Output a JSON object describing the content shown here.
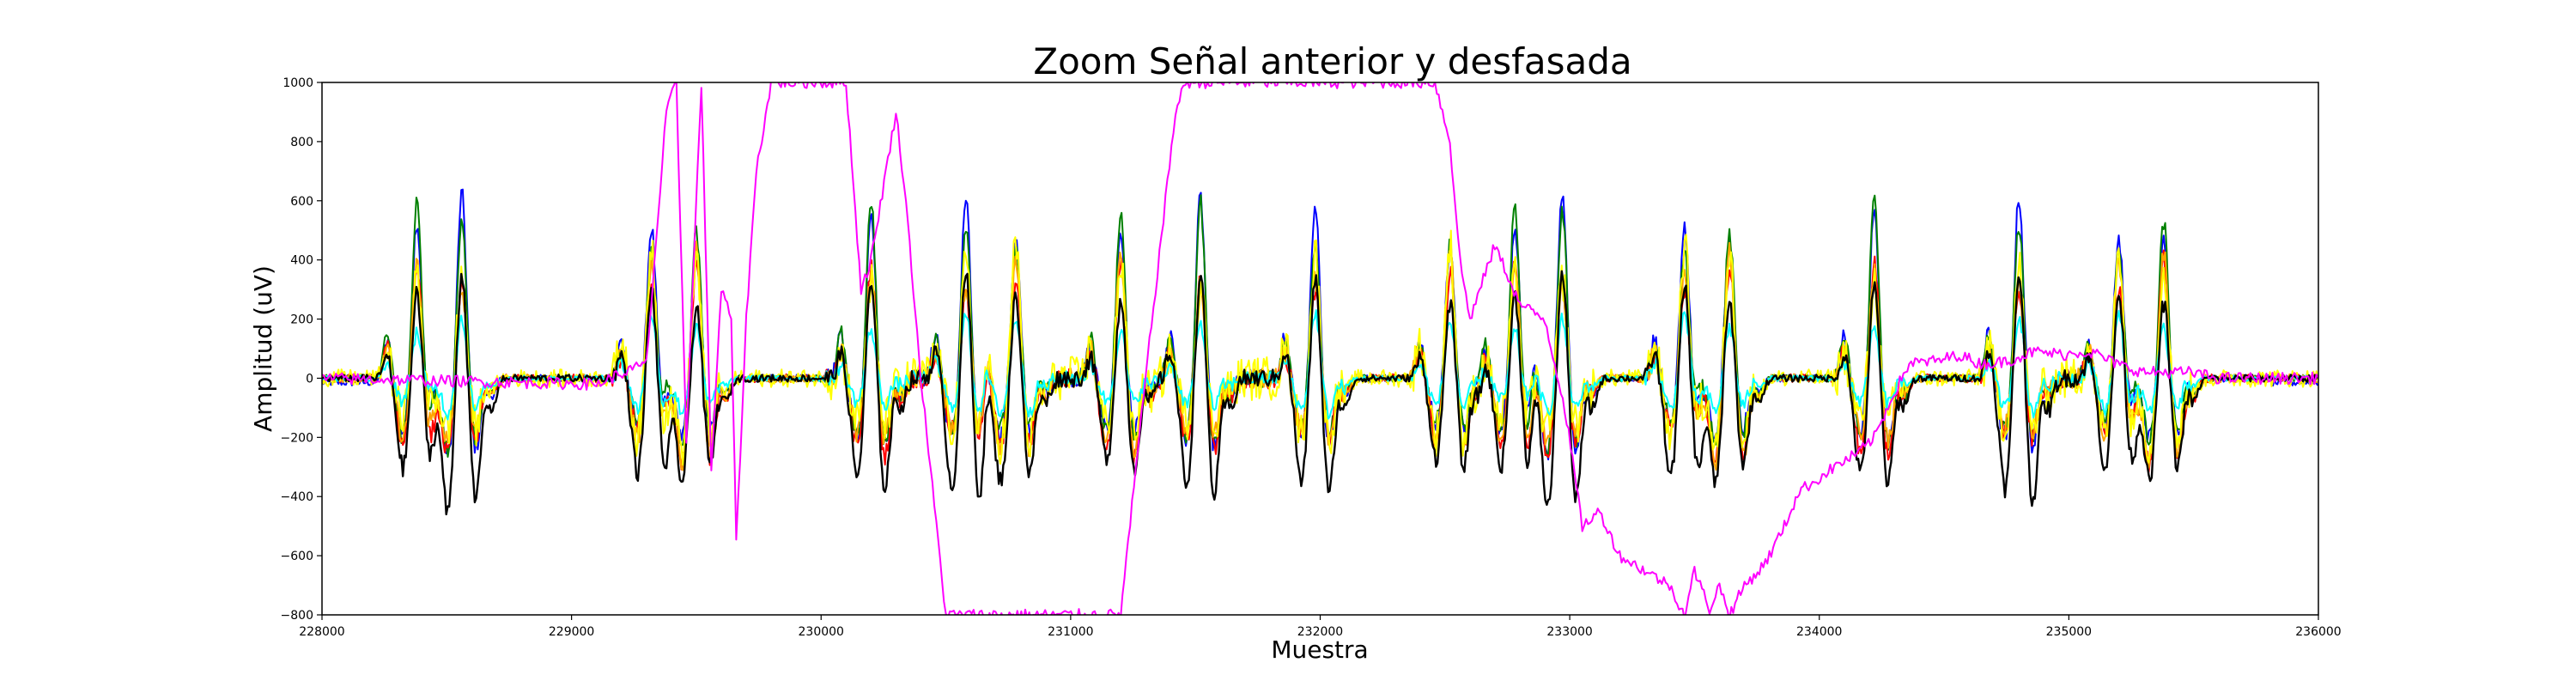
{
  "chart_data": {
    "type": "line",
    "title": "Zoom Señal anterior y desfasada",
    "xlabel": "Muestra",
    "ylabel": "Amplitud (uV)",
    "xlim": [
      228000,
      236000
    ],
    "ylim": [
      -800,
      1000
    ],
    "xticks": [
      228000,
      229000,
      230000,
      231000,
      232000,
      233000,
      234000,
      235000,
      236000
    ],
    "yticks": [
      -800,
      -600,
      -400,
      -200,
      0,
      200,
      400,
      600,
      800,
      1000
    ],
    "grid": false,
    "spike_times": [
      228380,
      228560,
      229320,
      229500,
      230200,
      230580,
      230780,
      231200,
      231520,
      231980,
      232520,
      232780,
      232970,
      233460,
      233640,
      234220,
      234800,
      235200,
      235380
    ],
    "segments": [
      [
        228000,
        228260
      ],
      [
        228640,
        229160
      ],
      [
        229600,
        230020
      ],
      [
        232100,
        232360
      ],
      [
        233100,
        233300
      ],
      [
        233740,
        234060
      ],
      [
        234350,
        234640
      ],
      [
        235500,
        236000
      ]
    ],
    "series": [
      {
        "color": "#0000ff",
        "peak": 640,
        "trough": -240,
        "noise": 12
      },
      {
        "color": "#008000",
        "peak": 620,
        "trough": -230,
        "noise": 12
      },
      {
        "color": "#ff0000",
        "peak": 420,
        "trough": -280,
        "noise": 14
      },
      {
        "color": "#ffa500",
        "peak": 450,
        "trough": -260,
        "noise": 14
      },
      {
        "color": "#ffff00",
        "peak": 470,
        "trough": -220,
        "noise": 30
      },
      {
        "color": "#00ffff",
        "peak": 230,
        "trough": -120,
        "noise": 10
      },
      {
        "color": "#000000",
        "peak": 380,
        "trough": -420,
        "noise": 12
      }
    ],
    "outlier_series": {
      "color": "#ff00ff",
      "points": [
        [
          228000,
          0
        ],
        [
          229100,
          -20
        ],
        [
          229300,
          50
        ],
        [
          229380,
          900
        ],
        [
          229420,
          1000
        ],
        [
          229460,
          -200
        ],
        [
          229520,
          1000
        ],
        [
          229560,
          -300
        ],
        [
          229600,
          300
        ],
        [
          229640,
          200
        ],
        [
          229660,
          -560
        ],
        [
          229700,
          200
        ],
        [
          229740,
          700
        ],
        [
          229800,
          1000
        ],
        [
          230100,
          1000
        ],
        [
          230160,
          300
        ],
        [
          230200,
          400
        ],
        [
          230260,
          700
        ],
        [
          230300,
          900
        ],
        [
          230340,
          600
        ],
        [
          230400,
          0
        ],
        [
          230500,
          -800
        ],
        [
          231200,
          -800
        ],
        [
          231300,
          0
        ],
        [
          231380,
          600
        ],
        [
          231420,
          900
        ],
        [
          231460,
          1000
        ],
        [
          232460,
          1000
        ],
        [
          232520,
          800
        ],
        [
          232560,
          400
        ],
        [
          232600,
          200
        ],
        [
          232700,
          450
        ],
        [
          232800,
          250
        ],
        [
          232900,
          200
        ],
        [
          232980,
          -100
        ],
        [
          233050,
          -500
        ],
        [
          233120,
          -450
        ],
        [
          233200,
          -600
        ],
        [
          233300,
          -650
        ],
        [
          233400,
          -700
        ],
        [
          233460,
          -800
        ],
        [
          233500,
          -650
        ],
        [
          233560,
          -780
        ],
        [
          233600,
          -700
        ],
        [
          233640,
          -800
        ],
        [
          233700,
          -700
        ],
        [
          233760,
          -650
        ],
        [
          233800,
          -600
        ],
        [
          233860,
          -500
        ],
        [
          233920,
          -380
        ],
        [
          233980,
          -350
        ],
        [
          234060,
          -300
        ],
        [
          234160,
          -250
        ],
        [
          234220,
          -200
        ],
        [
          234300,
          -50
        ],
        [
          234360,
          50
        ],
        [
          234480,
          60
        ],
        [
          234560,
          80
        ],
        [
          234640,
          50
        ],
        [
          234700,
          50
        ],
        [
          234760,
          60
        ],
        [
          234860,
          90
        ],
        [
          234980,
          80
        ],
        [
          235060,
          90
        ],
        [
          235120,
          80
        ],
        [
          235160,
          60
        ],
        [
          235220,
          40
        ],
        [
          235300,
          20
        ],
        [
          235480,
          20
        ],
        [
          235600,
          0
        ],
        [
          236000,
          0
        ]
      ]
    }
  }
}
